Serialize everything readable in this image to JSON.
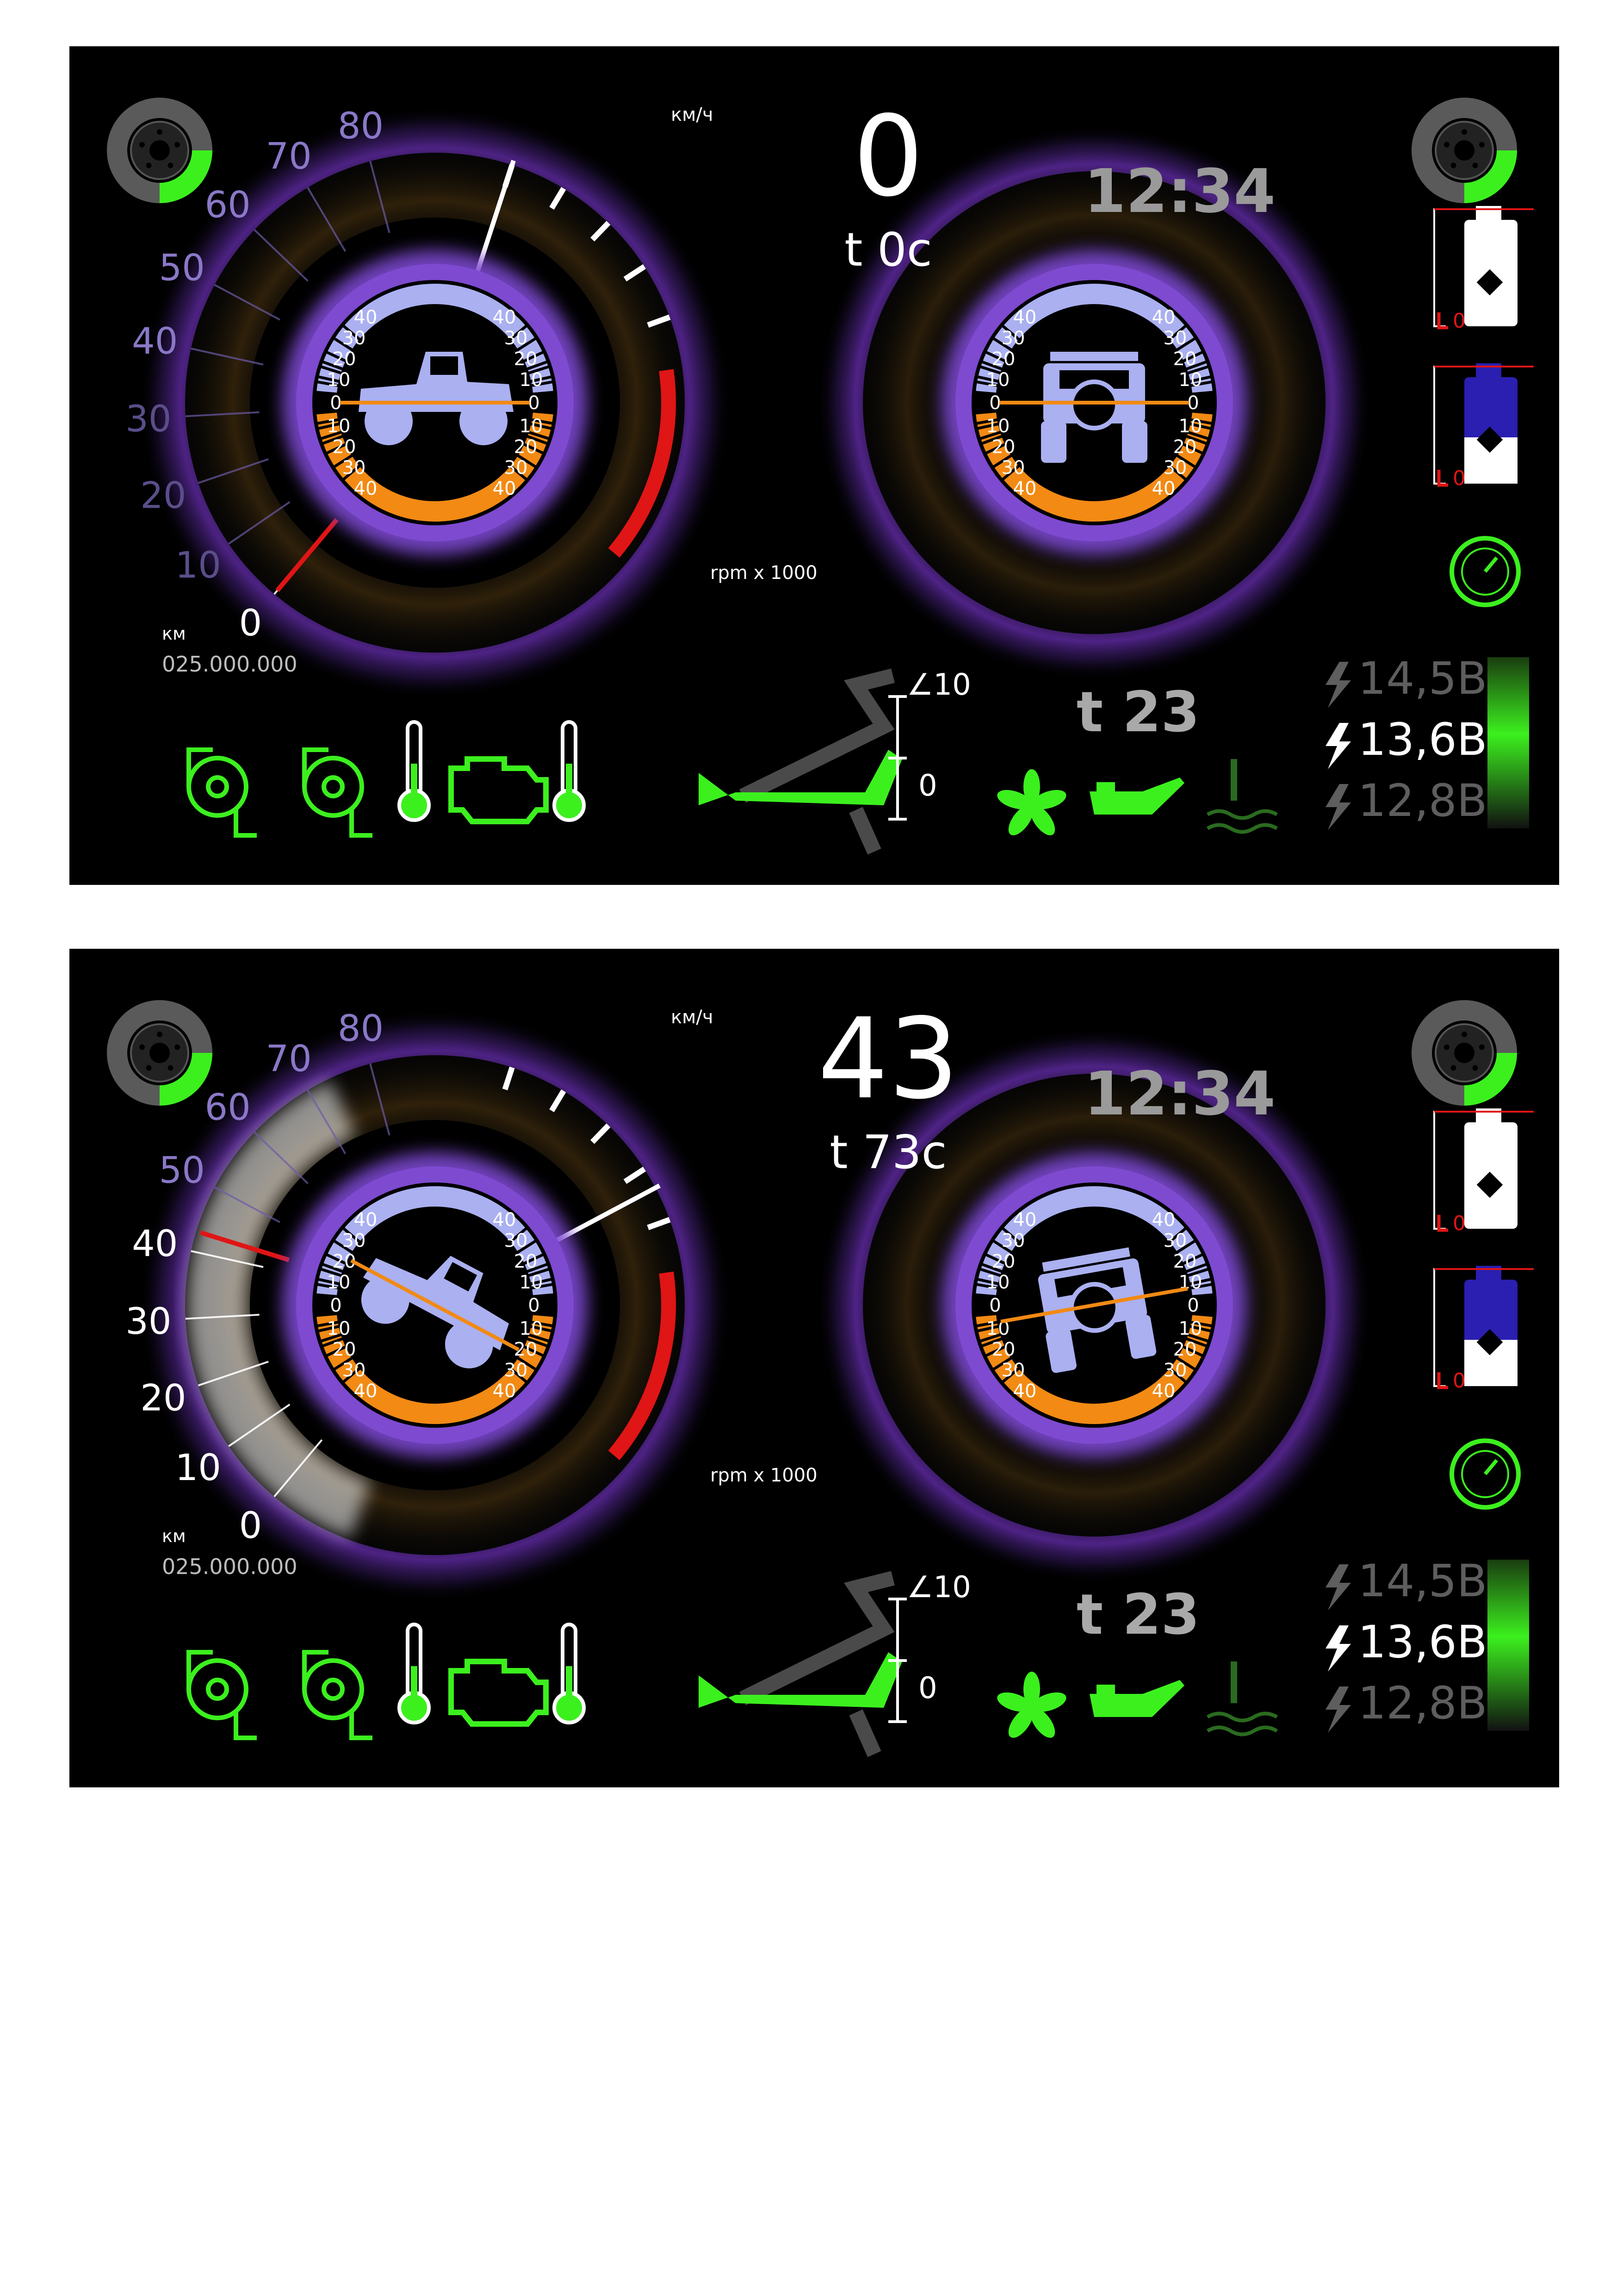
{
  "colors": {
    "background": "#000000",
    "accent_purple": "#8a4bd6",
    "inclinometer_blue": "#aab0f0",
    "inclinometer_orange": "#f28a14",
    "warning_red": "#e01515",
    "status_green": "#3cf01e",
    "battery_bar": "#3cf01e"
  },
  "icons": [
    "brake-disc-icon",
    "fuel-canister-icon",
    "washer-fluid-icon",
    "gauge-icon",
    "turbo-icon",
    "thermometer-icon",
    "check-engine-icon",
    "pedal-icon",
    "fan-icon",
    "oil-can-icon",
    "coolant-icon",
    "lightning-icon"
  ],
  "screens": [
    {
      "speed_unit": "км/ч",
      "speed": "0",
      "timer": "t  0c",
      "clock": "12:34",
      "km_label": "км",
      "odometer": "025.000.000",
      "rpm_label": "rpm x 1000",
      "speed_ticks": [
        "0",
        "10",
        "20",
        "30",
        "40",
        "50",
        "60",
        "70",
        "80"
      ],
      "pitch_deg": 0,
      "roll_deg": 0,
      "speed_value": 0,
      "incline_ticks": [
        "40",
        "30",
        "20",
        "10",
        "0",
        "10",
        "20",
        "30",
        "40"
      ],
      "pedal_angle_top": "∠10",
      "pedal_angle_zero": "0",
      "engine_temp": "t 23",
      "voltages": [
        "14,5В",
        "13,6В",
        "12,8В"
      ],
      "fuel_label": "0",
      "washer_label": "0"
    },
    {
      "speed_unit": "км/ч",
      "speed": "43",
      "timer": "t 73c",
      "clock": "12:34",
      "km_label": "км",
      "odometer": "025.000.000",
      "rpm_label": "rpm x 1000",
      "speed_ticks": [
        "0",
        "10",
        "20",
        "30",
        "40",
        "50",
        "60",
        "70",
        "80"
      ],
      "pitch_deg": 28,
      "roll_deg": -10,
      "speed_value": 43,
      "incline_ticks": [
        "40",
        "30",
        "20",
        "10",
        "0",
        "10",
        "20",
        "30",
        "40"
      ],
      "pedal_angle_top": "∠10",
      "pedal_angle_zero": "0",
      "engine_temp": "t 23",
      "voltages": [
        "14,5В",
        "13,6В",
        "12,8В"
      ],
      "fuel_label": "0",
      "washer_label": "0"
    }
  ]
}
